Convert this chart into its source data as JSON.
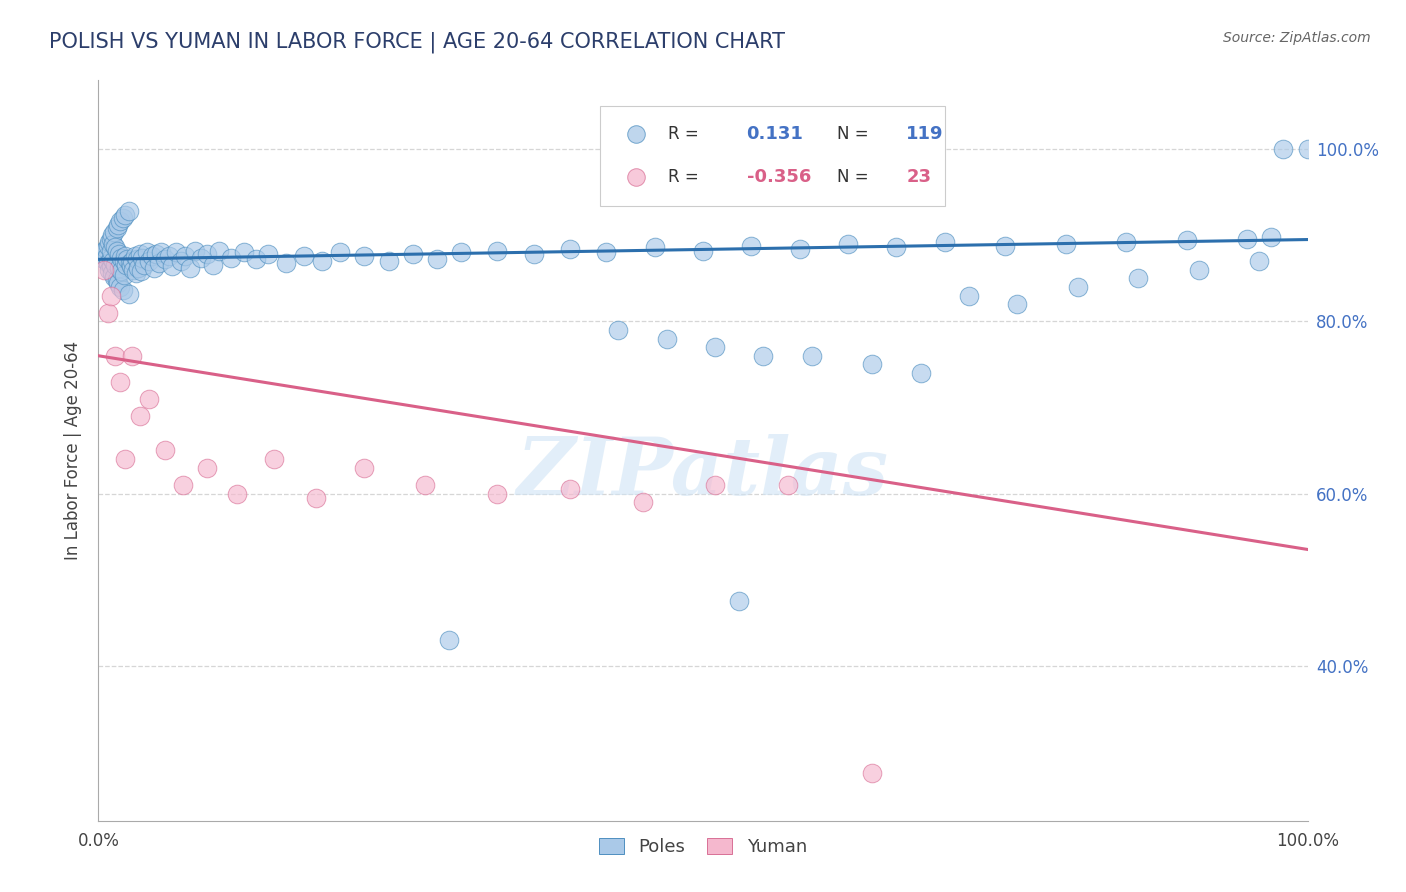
{
  "title": "POLISH VS YUMAN IN LABOR FORCE | AGE 20-64 CORRELATION CHART",
  "source_text": "Source: ZipAtlas.com",
  "ylabel": "In Labor Force | Age 20-64",
  "xlim": [
    0.0,
    1.0
  ],
  "ylim": [
    0.22,
    1.08
  ],
  "ytick_positions": [
    0.4,
    0.6,
    0.8,
    1.0
  ],
  "ytick_labels_right": [
    "40.0%",
    "60.0%",
    "80.0%",
    "100.0%"
  ],
  "xtick_labels": [
    "0.0%",
    "100.0%"
  ],
  "watermark": "ZIPatlas",
  "legend_blue_R_val": "0.131",
  "legend_blue_N_val": "119",
  "legend_pink_R_val": "-0.356",
  "legend_pink_N_val": "23",
  "blue_fill_color": "#aac9e8",
  "blue_edge_color": "#4e8fc0",
  "blue_line_color": "#2c6fad",
  "pink_fill_color": "#f5b8ce",
  "pink_edge_color": "#d97096",
  "pink_line_color": "#d96088",
  "grid_color": "#cccccc",
  "background_color": "#ffffff",
  "poles_x": [
    0.003,
    0.005,
    0.006,
    0.007,
    0.008,
    0.008,
    0.009,
    0.009,
    0.01,
    0.01,
    0.01,
    0.01,
    0.011,
    0.011,
    0.012,
    0.012,
    0.013,
    0.013,
    0.014,
    0.014,
    0.015,
    0.015,
    0.015,
    0.016,
    0.016,
    0.017,
    0.017,
    0.018,
    0.018,
    0.019,
    0.019,
    0.02,
    0.02,
    0.021,
    0.021,
    0.022,
    0.022,
    0.023,
    0.024,
    0.025,
    0.025,
    0.026,
    0.027,
    0.028,
    0.029,
    0.03,
    0.031,
    0.032,
    0.033,
    0.034,
    0.035,
    0.036,
    0.038,
    0.04,
    0.042,
    0.044,
    0.046,
    0.048,
    0.05,
    0.052,
    0.055,
    0.058,
    0.061,
    0.064,
    0.068,
    0.072,
    0.076,
    0.08,
    0.085,
    0.09,
    0.095,
    0.1,
    0.11,
    0.12,
    0.13,
    0.14,
    0.155,
    0.17,
    0.185,
    0.2,
    0.22,
    0.24,
    0.26,
    0.28,
    0.3,
    0.33,
    0.36,
    0.39,
    0.42,
    0.46,
    0.5,
    0.54,
    0.58,
    0.62,
    0.66,
    0.7,
    0.75,
    0.8,
    0.85,
    0.9,
    0.95,
    0.97,
    0.98,
    1.0,
    0.43,
    0.47,
    0.51,
    0.55,
    0.59,
    0.64,
    0.68,
    0.72,
    0.76,
    0.81,
    0.86,
    0.91,
    0.96,
    0.53,
    0.29
  ],
  "poles_y": [
    0.88,
    0.872,
    0.884,
    0.876,
    0.888,
    0.868,
    0.892,
    0.86,
    0.896,
    0.864,
    0.874,
    0.882,
    0.9,
    0.856,
    0.89,
    0.87,
    0.904,
    0.852,
    0.886,
    0.866,
    0.908,
    0.848,
    0.882,
    0.912,
    0.844,
    0.878,
    0.862,
    0.916,
    0.84,
    0.874,
    0.858,
    0.92,
    0.836,
    0.87,
    0.854,
    0.876,
    0.924,
    0.866,
    0.872,
    0.928,
    0.832,
    0.868,
    0.864,
    0.87,
    0.86,
    0.876,
    0.856,
    0.872,
    0.862,
    0.878,
    0.858,
    0.874,
    0.865,
    0.88,
    0.87,
    0.876,
    0.862,
    0.878,
    0.868,
    0.88,
    0.872,
    0.876,
    0.864,
    0.88,
    0.87,
    0.876,
    0.862,
    0.882,
    0.874,
    0.878,
    0.866,
    0.882,
    0.874,
    0.88,
    0.872,
    0.878,
    0.868,
    0.876,
    0.87,
    0.88,
    0.876,
    0.87,
    0.878,
    0.872,
    0.88,
    0.882,
    0.878,
    0.884,
    0.88,
    0.886,
    0.882,
    0.888,
    0.884,
    0.89,
    0.886,
    0.892,
    0.888,
    0.89,
    0.892,
    0.894,
    0.896,
    0.898,
    1.0,
    1.0,
    0.79,
    0.78,
    0.77,
    0.76,
    0.76,
    0.75,
    0.74,
    0.83,
    0.82,
    0.84,
    0.85,
    0.86,
    0.87,
    0.475,
    0.43
  ],
  "yuman_x": [
    0.005,
    0.008,
    0.01,
    0.014,
    0.018,
    0.022,
    0.028,
    0.034,
    0.042,
    0.055,
    0.07,
    0.09,
    0.115,
    0.145,
    0.18,
    0.22,
    0.27,
    0.33,
    0.39,
    0.45,
    0.51,
    0.57,
    0.64
  ],
  "yuman_y": [
    0.86,
    0.81,
    0.83,
    0.76,
    0.73,
    0.64,
    0.76,
    0.69,
    0.71,
    0.65,
    0.61,
    0.63,
    0.6,
    0.64,
    0.595,
    0.63,
    0.61,
    0.6,
    0.605,
    0.59,
    0.61,
    0.61,
    0.275
  ],
  "blue_trend_start": 0.872,
  "blue_trend_end": 0.895,
  "pink_trend_start": 0.76,
  "pink_trend_end": 0.535
}
